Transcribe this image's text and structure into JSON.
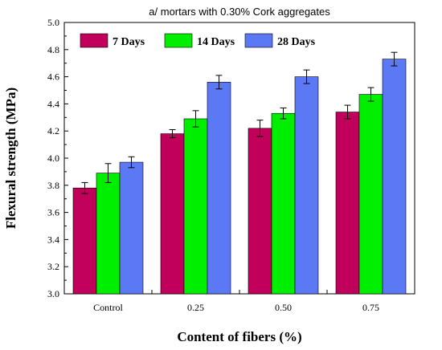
{
  "chart_data": {
    "type": "bar",
    "title": "a/ mortars with 0.30% Cork aggregates",
    "xlabel": "Content of fibers (%)",
    "ylabel": "Flexural strength (MPa)",
    "ylim": [
      3.0,
      5.0
    ],
    "yticks": [
      "3.0",
      "3.2",
      "3.4",
      "3.6",
      "3.8",
      "4.0",
      "4.2",
      "4.4",
      "4.6",
      "4.8",
      "5.0"
    ],
    "categories": [
      "Control",
      "0.25",
      "0.50",
      "0.75"
    ],
    "series": [
      {
        "name": "7 Days",
        "color": "#c0005a",
        "values": [
          3.78,
          4.18,
          4.22,
          4.34
        ],
        "errors": [
          0.04,
          0.03,
          0.06,
          0.05
        ]
      },
      {
        "name": "14 Days",
        "color": "#00ee00",
        "values": [
          3.89,
          4.29,
          4.33,
          4.47
        ],
        "errors": [
          0.07,
          0.06,
          0.04,
          0.05
        ]
      },
      {
        "name": "28 Days",
        "color": "#5b79f5",
        "values": [
          3.97,
          4.56,
          4.6,
          4.73
        ],
        "errors": [
          0.04,
          0.05,
          0.05,
          0.05
        ]
      }
    ],
    "legend_position": "top-left",
    "grid": false
  }
}
